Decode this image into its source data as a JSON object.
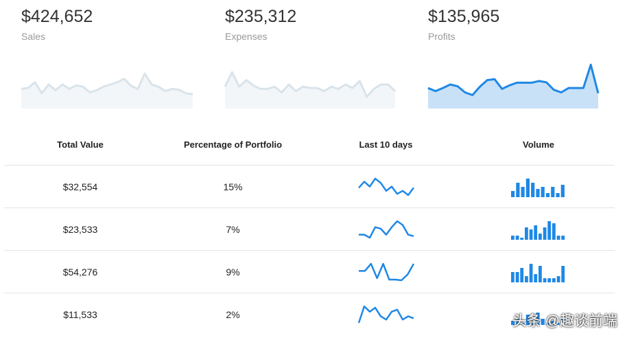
{
  "kpis": [
    {
      "value": "$424,652",
      "label": "Sales",
      "style": "muted",
      "spark": [
        40,
        42,
        55,
        30,
        50,
        37,
        50,
        40,
        48,
        45,
        32,
        37,
        45,
        50,
        55,
        63,
        47,
        40,
        75,
        50,
        45,
        35,
        40,
        38,
        30,
        28
      ]
    },
    {
      "value": "$235,312",
      "label": "Expenses",
      "style": "muted",
      "spark": [
        45,
        78,
        45,
        60,
        48,
        40,
        40,
        45,
        32,
        50,
        35,
        45,
        42,
        42,
        35,
        45,
        40,
        50,
        42,
        58,
        22,
        40,
        50,
        50,
        35
      ]
    },
    {
      "value": "$135,965",
      "label": "Profits",
      "style": "accent",
      "spark": [
        42,
        35,
        42,
        50,
        46,
        32,
        26,
        45,
        60,
        62,
        40,
        48,
        54,
        54,
        54,
        58,
        55,
        38,
        32,
        42,
        42,
        42,
        95,
        30
      ]
    }
  ],
  "table": {
    "headers": [
      "Total Value",
      "Percentage of Portfolio",
      "Last 10 days",
      "Volume"
    ],
    "rows": [
      {
        "total": "$32,554",
        "pct": "15%",
        "line": [
          20,
          30,
          22,
          35,
          28,
          15,
          22,
          10,
          15,
          8,
          20
        ],
        "bars": [
          3,
          7,
          5,
          9,
          7,
          4,
          5,
          2,
          5,
          2,
          6
        ]
      },
      {
        "total": "$23,533",
        "pct": "7%",
        "line": [
          12,
          12,
          8,
          22,
          20,
          12,
          22,
          30,
          25,
          12,
          10
        ],
        "bars": [
          2,
          2,
          1,
          6,
          5,
          7,
          3,
          6,
          9,
          8,
          2,
          2
        ]
      },
      {
        "total": "$54,276",
        "pct": "9%",
        "line": [
          20,
          20,
          30,
          10,
          30,
          8,
          8,
          7,
          15,
          30
        ],
        "bars": [
          5,
          5,
          7,
          3,
          9,
          4,
          8,
          2,
          2,
          2,
          3,
          8
        ]
      },
      {
        "total": "$11,533",
        "pct": "2%",
        "line": [
          5,
          30,
          22,
          28,
          15,
          10,
          22,
          25,
          10,
          15,
          12
        ],
        "bars": [
          2,
          3,
          1,
          5,
          2,
          6,
          3,
          1,
          2,
          1,
          3
        ]
      }
    ]
  },
  "watermark": "头条 @趣谈前端",
  "colors": {
    "accent_line": "#1e88e5",
    "accent_fill": "#c8e1f7",
    "muted_line": "#d9e3ea",
    "muted_fill": "#f3f6f9",
    "bar": "#1e88e5"
  }
}
